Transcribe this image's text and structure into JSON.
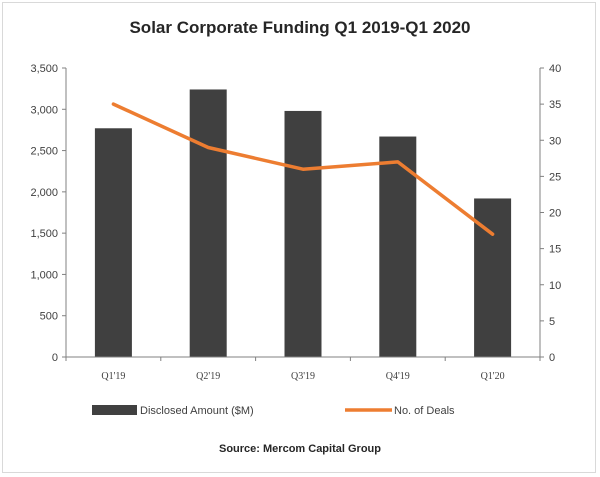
{
  "chart_data": {
    "type": "bar",
    "title": "Solar Corporate Funding Q1 2019-Q1 2020",
    "categories": [
      "Q1'19",
      "Q2'19",
      "Q3'19",
      "Q4'19",
      "Q1'20"
    ],
    "series": [
      {
        "name": "Disclosed Amount ($M)",
        "type": "bar",
        "axis": "left",
        "values": [
          2770,
          3240,
          2980,
          2670,
          1920
        ]
      },
      {
        "name": "No. of Deals",
        "type": "line",
        "axis": "right",
        "values": [
          35,
          29,
          26,
          27,
          17
        ]
      }
    ],
    "y_left": {
      "ylim": [
        0,
        3500
      ],
      "ticks": [
        "0",
        "500",
        "1,000",
        "1,500",
        "2,000",
        "2,500",
        "3,000",
        "3,500"
      ],
      "tick_values": [
        0,
        500,
        1000,
        1500,
        2000,
        2500,
        3000,
        3500
      ]
    },
    "y_right": {
      "ylim": [
        0,
        40
      ],
      "ticks": [
        "0",
        "5",
        "10",
        "15",
        "20",
        "25",
        "30",
        "35",
        "40"
      ],
      "tick_values": [
        0,
        5,
        10,
        15,
        20,
        25,
        30,
        35,
        40
      ]
    },
    "grid": false,
    "legend_placement": "bottom",
    "source": "Source: Mercom Capital Group",
    "colors": {
      "bar": "#404040",
      "line": "#ed7d31",
      "axis": "#808080"
    }
  }
}
